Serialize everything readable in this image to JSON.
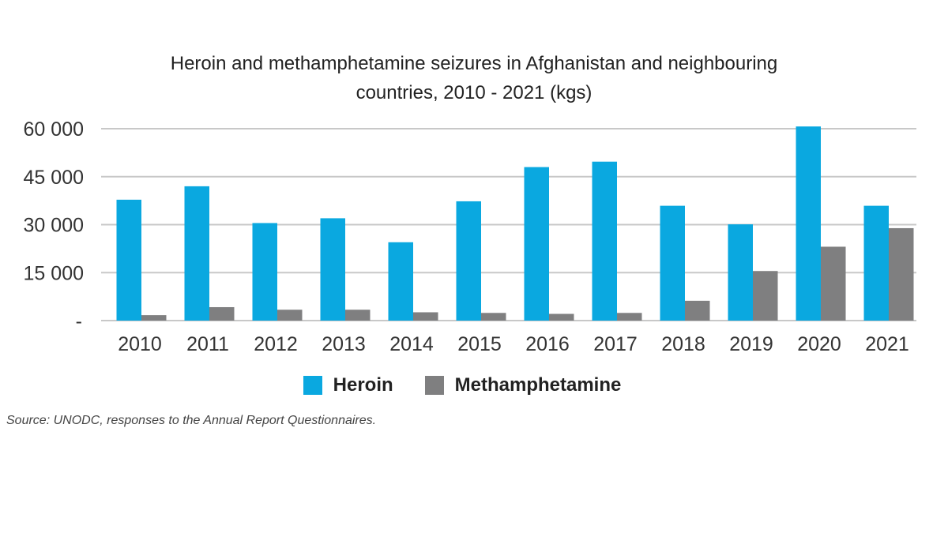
{
  "chart_data": {
    "type": "bar",
    "title": "Heroin and methamphetamine seizures in Afghanistan and neighbouring countries, 2010 - 2021 (kgs)",
    "title_lines": [
      "Heroin and methamphetamine seizures in Afghanistan and neighbouring",
      "countries, 2010 - 2021 (kgs)"
    ],
    "categories": [
      "2010",
      "2011",
      "2012",
      "2013",
      "2014",
      "2015",
      "2016",
      "2017",
      "2018",
      "2019",
      "2020",
      "2021"
    ],
    "series": [
      {
        "name": "Heroin",
        "color": "#0aa8e0",
        "values": [
          37800,
          42000,
          30500,
          32000,
          24500,
          37300,
          48000,
          49700,
          35900,
          30100,
          60700,
          35900
        ]
      },
      {
        "name": "Methamphetamine",
        "color": "#7f7f80",
        "values": [
          1700,
          4200,
          3400,
          3400,
          2600,
          2400,
          2100,
          2400,
          6200,
          15500,
          23100,
          28900
        ]
      }
    ],
    "ylim": [
      0,
      60000
    ],
    "yticks": [
      0,
      15000,
      30000,
      45000,
      60000
    ],
    "ytick_labels": [
      "-",
      "15 000",
      "30 000",
      "45 000",
      "60 000"
    ],
    "grid": true,
    "legend_position": "bottom",
    "xlabel": "",
    "ylabel": ""
  },
  "source": "Source: UNODC, responses to the Annual Report Questionnaires."
}
